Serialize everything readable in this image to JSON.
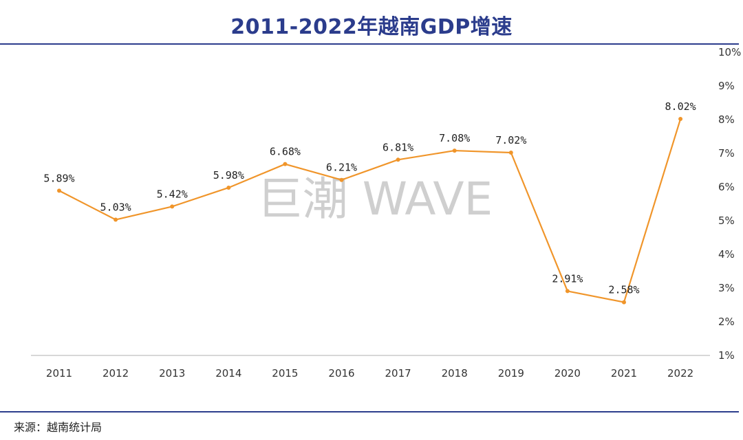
{
  "watermark": "巨潮 WAVE",
  "source": "来源：越南统计局",
  "colors": {
    "title": "#2B3C8C",
    "line": "#F0952A",
    "axis": "#BFBFBF"
  },
  "chart_data": {
    "type": "line",
    "title": "2011-2022年越南GDP增速",
    "xlabel": "",
    "ylabel": "",
    "categories": [
      "2011",
      "2012",
      "2013",
      "2014",
      "2015",
      "2016",
      "2017",
      "2018",
      "2019",
      "2020",
      "2021",
      "2022"
    ],
    "series": [
      {
        "name": "越南GDP增速",
        "values": [
          5.89,
          5.03,
          5.42,
          5.98,
          6.68,
          6.21,
          6.81,
          7.08,
          7.02,
          2.91,
          2.58,
          8.02
        ],
        "labels": [
          "5.89%",
          "5.03%",
          "5.42%",
          "5.98%",
          "6.68%",
          "6.21%",
          "6.81%",
          "7.08%",
          "7.02%",
          "2.91%",
          "2.58%",
          "8.02%"
        ]
      }
    ],
    "ylim": [
      1,
      10
    ],
    "y_ticks": [
      1,
      2,
      3,
      4,
      5,
      6,
      7,
      8,
      9,
      10
    ],
    "y_tick_labels": [
      "1%",
      "2%",
      "3%",
      "4%",
      "5%",
      "6%",
      "7%",
      "8%",
      "9%",
      "10%"
    ],
    "y_axis_side": "right",
    "grid": false,
    "legend": "none"
  }
}
